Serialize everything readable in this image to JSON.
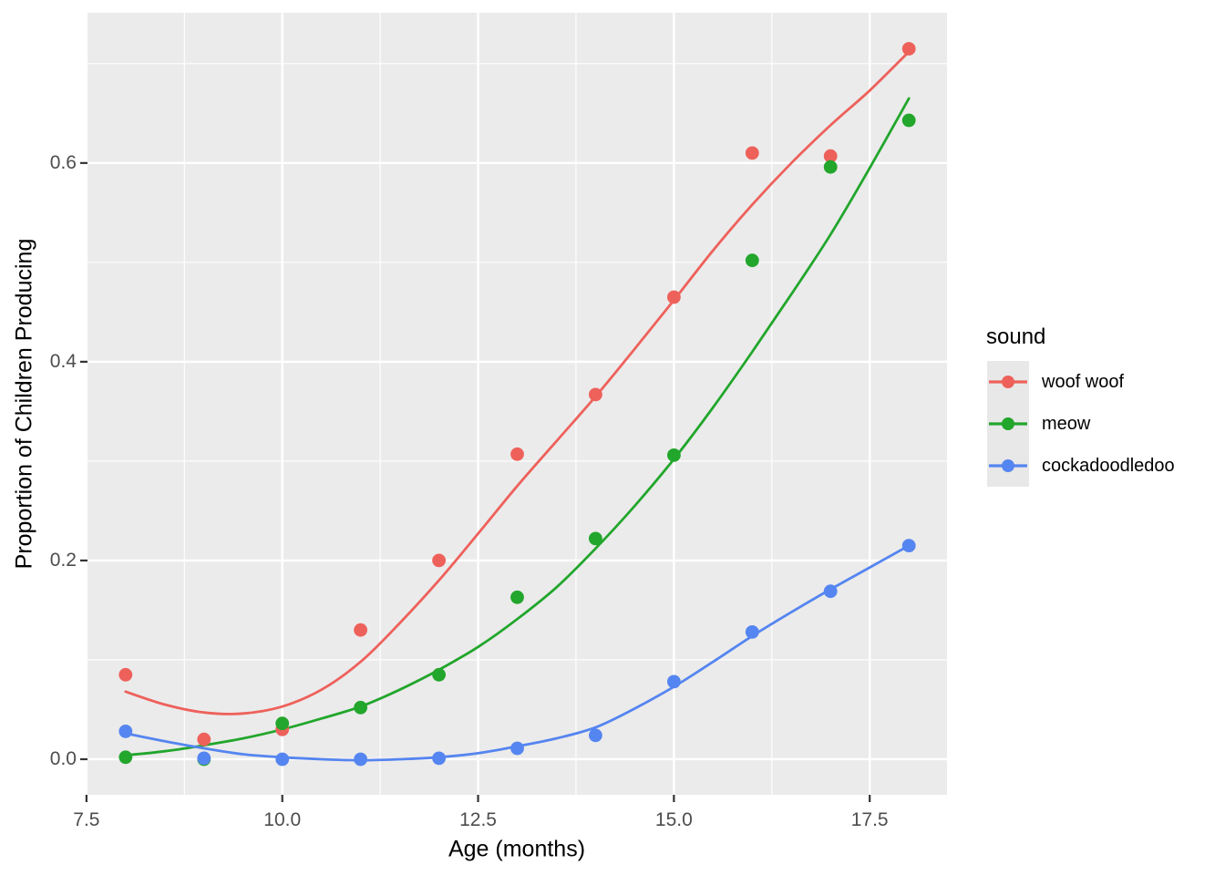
{
  "chart_data": {
    "type": "scatter",
    "subtype": "scatter-with-smooth-curves",
    "title": "",
    "xlabel": "Age (months)",
    "ylabel": "Proportion of Children Producing",
    "legend_title": "sound",
    "legend_position": "right",
    "grid": true,
    "xlim": [
      7.513,
      18.487
    ],
    "ylim": [
      -0.0358,
      0.7512
    ],
    "x_ticks": {
      "values": [
        7.5,
        10.0,
        12.5,
        15.0,
        17.5
      ],
      "labels": [
        "7.5",
        "10.0",
        "12.5",
        "15.0",
        "17.5"
      ]
    },
    "y_ticks": {
      "values": [
        0.0,
        0.2,
        0.4,
        0.6
      ],
      "labels": [
        "0.0",
        "0.2",
        "0.4",
        "0.6"
      ]
    },
    "x_minor_ticks": [
      8.75,
      11.25,
      13.75,
      16.25
    ],
    "y_minor_ticks": [
      0.1,
      0.3,
      0.5,
      0.7
    ],
    "series": [
      {
        "name": "woof woof",
        "color": "#EE615B",
        "points": [
          [
            8,
            0.085
          ],
          [
            9,
            0.02
          ],
          [
            10,
            0.03
          ],
          [
            11,
            0.13
          ],
          [
            12,
            0.2
          ],
          [
            13,
            0.307
          ],
          [
            14,
            0.367
          ],
          [
            15,
            0.465
          ],
          [
            16,
            0.61
          ],
          [
            17,
            0.607
          ],
          [
            18,
            0.715
          ]
        ],
        "smooth": [
          [
            8,
            0.068
          ],
          [
            8.5,
            0.055
          ],
          [
            9,
            0.047
          ],
          [
            9.5,
            0.046
          ],
          [
            10,
            0.053
          ],
          [
            10.5,
            0.07
          ],
          [
            11,
            0.098
          ],
          [
            11.5,
            0.137
          ],
          [
            12,
            0.18
          ],
          [
            12.5,
            0.227
          ],
          [
            13,
            0.275
          ],
          [
            13.5,
            0.32
          ],
          [
            14,
            0.365
          ],
          [
            14.5,
            0.413
          ],
          [
            15,
            0.462
          ],
          [
            15.5,
            0.512
          ],
          [
            16,
            0.558
          ],
          [
            16.5,
            0.6
          ],
          [
            17,
            0.638
          ],
          [
            17.5,
            0.673
          ],
          [
            18,
            0.712
          ]
        ]
      },
      {
        "name": "meow",
        "color": "#22A62C",
        "points": [
          [
            8,
            0.002
          ],
          [
            9,
            0.0
          ],
          [
            10,
            0.036
          ],
          [
            11,
            0.052
          ],
          [
            12,
            0.085
          ],
          [
            13,
            0.163
          ],
          [
            14,
            0.222
          ],
          [
            15,
            0.306
          ],
          [
            16,
            0.502
          ],
          [
            17,
            0.596
          ],
          [
            18,
            0.643
          ]
        ],
        "smooth": [
          [
            8,
            0.004
          ],
          [
            8.5,
            0.008
          ],
          [
            9,
            0.014
          ],
          [
            9.5,
            0.021
          ],
          [
            10,
            0.03
          ],
          [
            10.5,
            0.041
          ],
          [
            11,
            0.053
          ],
          [
            11.5,
            0.07
          ],
          [
            12,
            0.09
          ],
          [
            12.5,
            0.113
          ],
          [
            13,
            0.141
          ],
          [
            13.5,
            0.173
          ],
          [
            14,
            0.212
          ],
          [
            14.5,
            0.255
          ],
          [
            15,
            0.302
          ],
          [
            15.5,
            0.354
          ],
          [
            16,
            0.41
          ],
          [
            16.5,
            0.468
          ],
          [
            17,
            0.528
          ],
          [
            17.5,
            0.595
          ],
          [
            18,
            0.665
          ]
        ]
      },
      {
        "name": "cockadoodledoo",
        "color": "#5585F0",
        "points": [
          [
            8,
            0.028
          ],
          [
            9,
            0.001
          ],
          [
            10,
            0.0
          ],
          [
            11,
            0.0
          ],
          [
            12,
            0.001
          ],
          [
            13,
            0.011
          ],
          [
            14,
            0.024
          ],
          [
            15,
            0.078
          ],
          [
            16,
            0.128
          ],
          [
            17,
            0.169
          ],
          [
            18,
            0.215
          ]
        ],
        "smooth": [
          [
            8,
            0.026
          ],
          [
            8.5,
            0.018
          ],
          [
            9,
            0.011
          ],
          [
            9.5,
            0.005
          ],
          [
            10,
            0.002
          ],
          [
            10.5,
            0.0
          ],
          [
            11,
            -0.001
          ],
          [
            11.5,
            0.0
          ],
          [
            12,
            0.002
          ],
          [
            12.5,
            0.006
          ],
          [
            13,
            0.013
          ],
          [
            13.5,
            0.021
          ],
          [
            14,
            0.032
          ],
          [
            14.5,
            0.051
          ],
          [
            15,
            0.073
          ],
          [
            15.5,
            0.098
          ],
          [
            16,
            0.124
          ],
          [
            16.5,
            0.148
          ],
          [
            17,
            0.171
          ],
          [
            17.5,
            0.193
          ],
          [
            18,
            0.215
          ]
        ]
      }
    ],
    "style_colors": {
      "panel_background": "#EBEBEB",
      "grid": "#FFFFFF",
      "tick_mark": "#333333",
      "tick_label": "#4D4D4D",
      "legend_key_background": "#E8E8E8"
    }
  }
}
